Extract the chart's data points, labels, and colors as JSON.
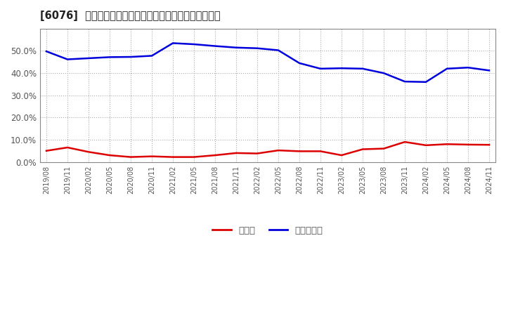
{
  "title": "[6076]  現顔金、有利子負債の総資産に対する比率の推移",
  "x_labels": [
    "2019/08",
    "2019/11",
    "2020/02",
    "2020/05",
    "2020/08",
    "2020/11",
    "2021/02",
    "2021/05",
    "2021/08",
    "2021/11",
    "2022/02",
    "2022/05",
    "2022/08",
    "2022/11",
    "2023/02",
    "2023/05",
    "2023/08",
    "2023/11",
    "2024/02",
    "2024/05",
    "2024/08",
    "2024/11"
  ],
  "cash": [
    0.05,
    0.065,
    0.045,
    0.03,
    0.022,
    0.025,
    0.022,
    0.022,
    0.03,
    0.04,
    0.038,
    0.052,
    0.048,
    0.048,
    0.03,
    0.057,
    0.06,
    0.09,
    0.075,
    0.08,
    0.078,
    0.077
  ],
  "debt": [
    0.498,
    0.462,
    0.467,
    0.472,
    0.473,
    0.478,
    0.535,
    0.53,
    0.522,
    0.515,
    0.512,
    0.503,
    0.445,
    0.42,
    0.422,
    0.42,
    0.4,
    0.362,
    0.36,
    0.42,
    0.425,
    0.412
  ],
  "cash_color": "#dd0000",
  "debt_color": "#0000dd",
  "background_color": "#ffffff",
  "grid_color": "#aaaaaa",
  "legend_cash": "現顔金",
  "legend_debt": "有利子負債",
  "ylim": [
    0.0,
    0.6
  ],
  "yticks": [
    0.0,
    0.1,
    0.2,
    0.3,
    0.4,
    0.5
  ]
}
